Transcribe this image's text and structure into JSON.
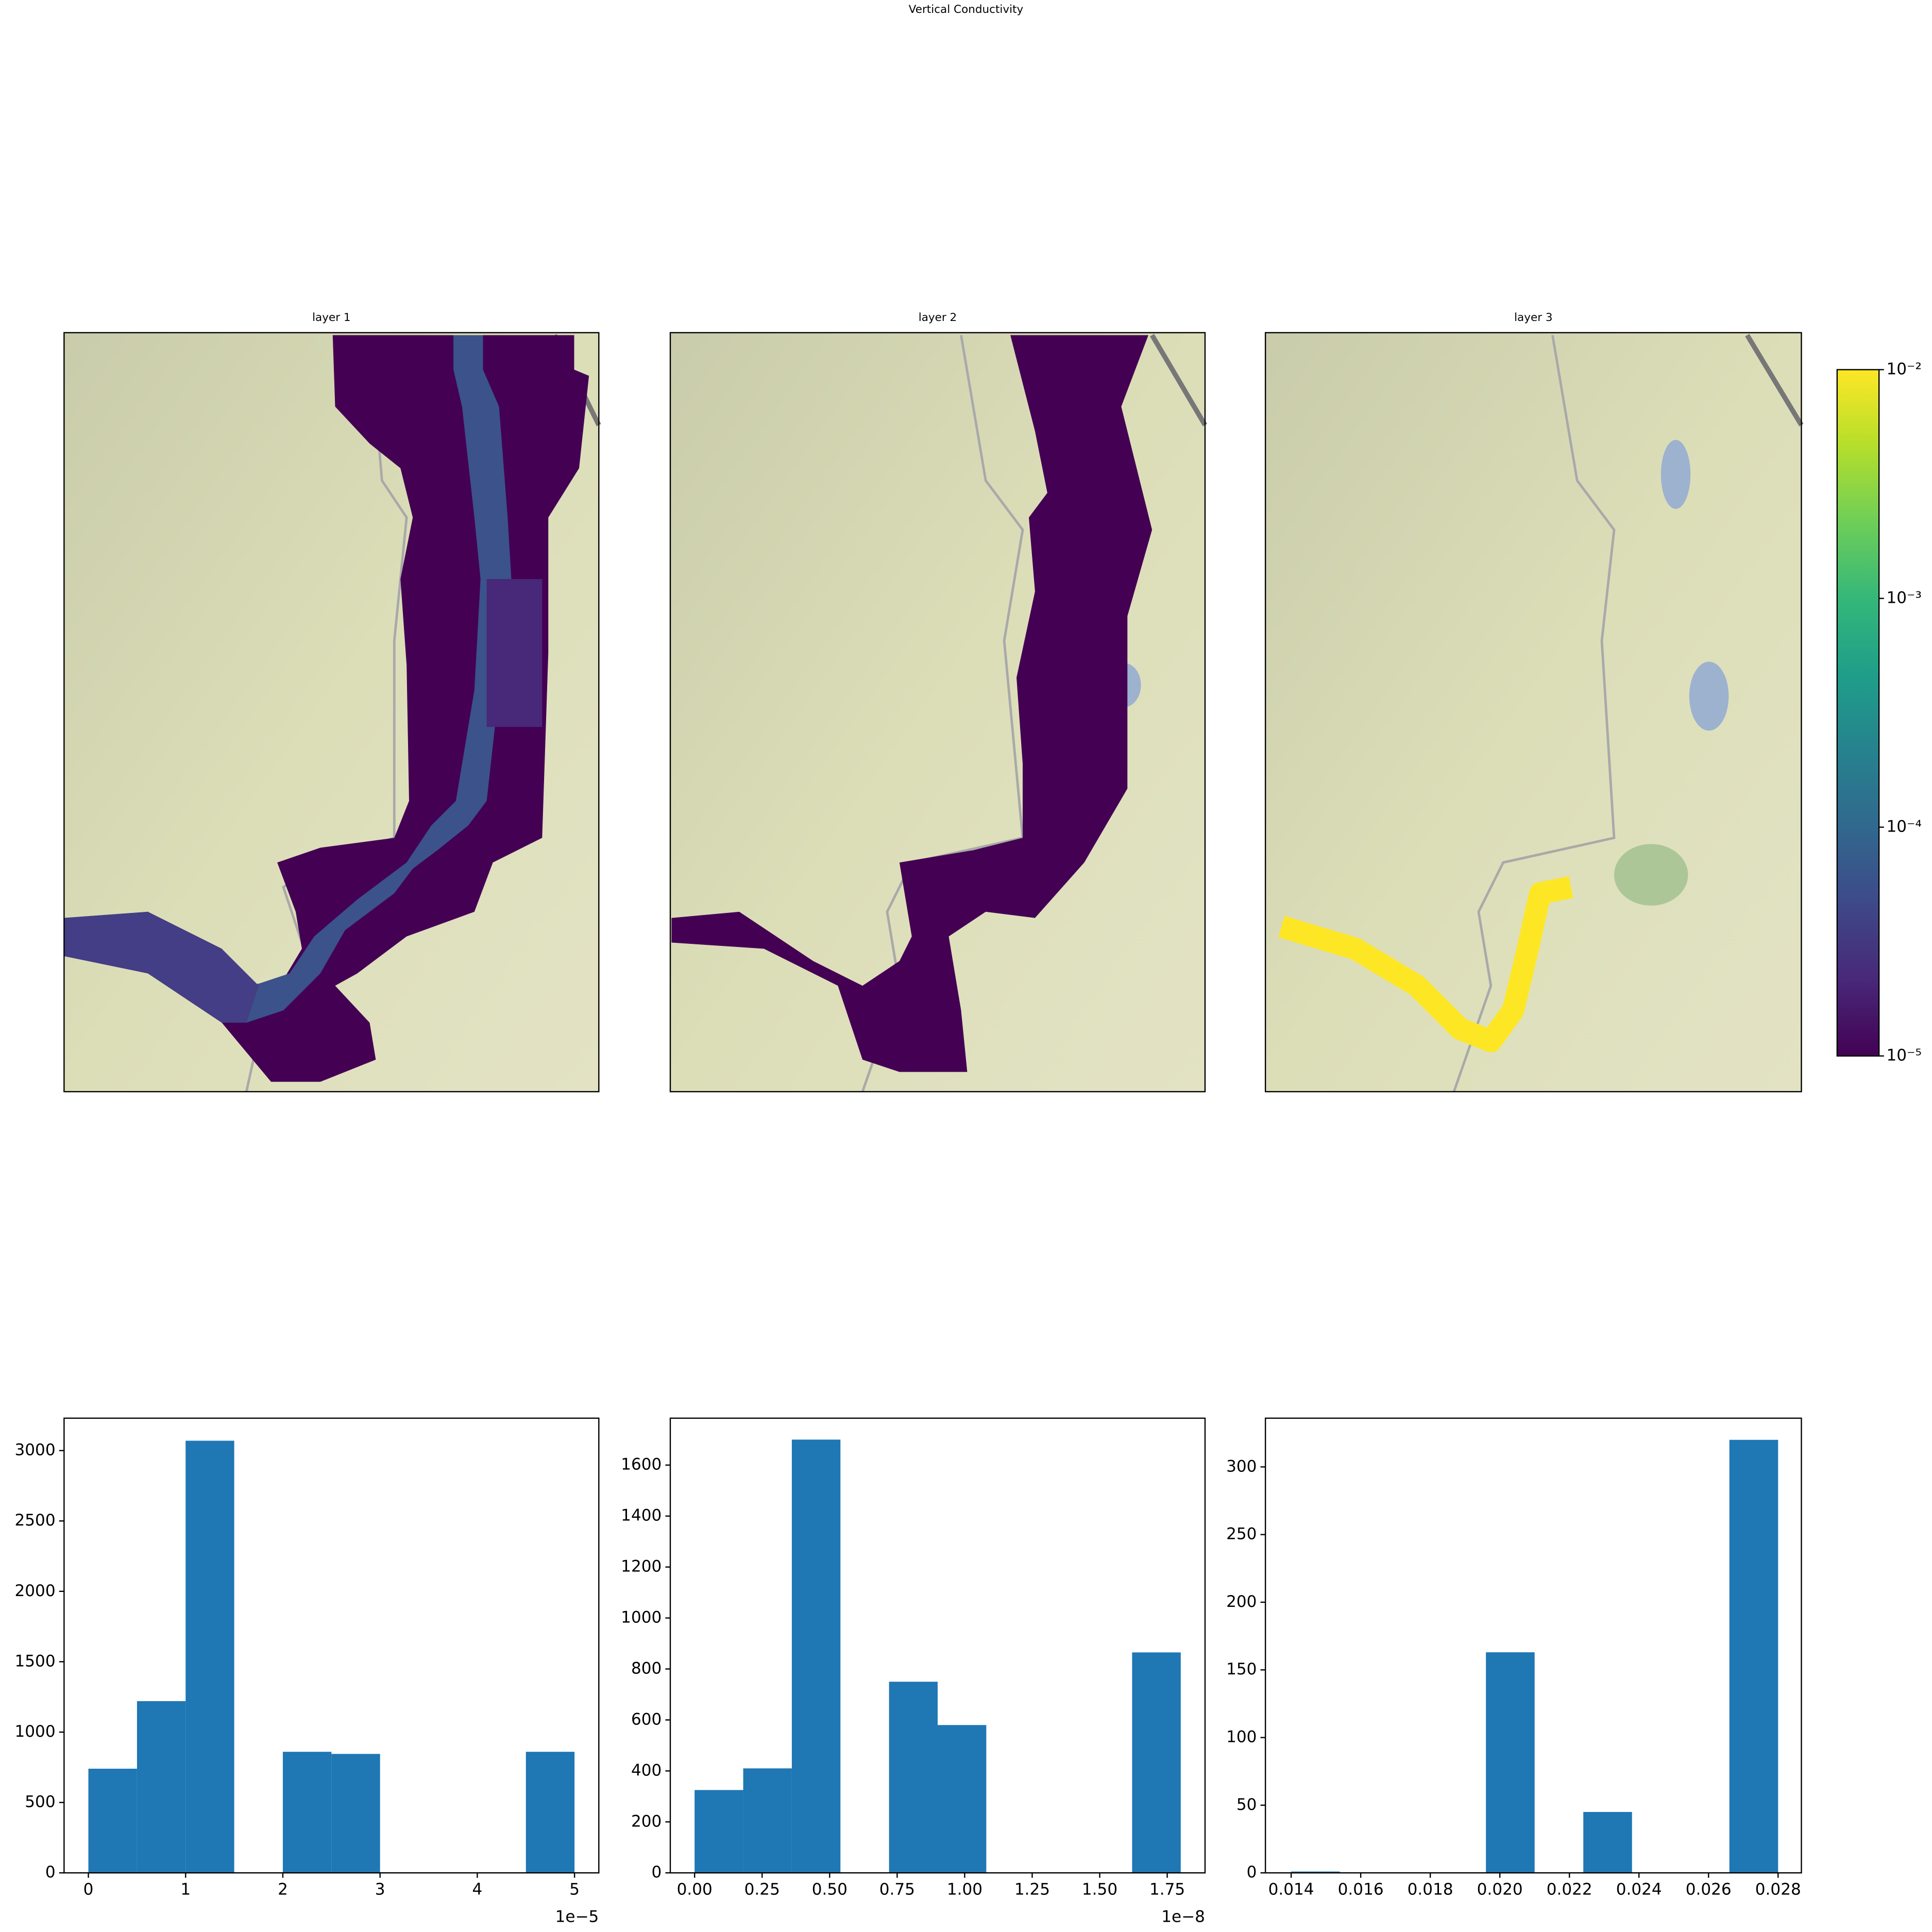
{
  "title": "Vertical Conductivity",
  "chart_data": [
    {
      "type": "map",
      "title": "layer 1"
    },
    {
      "type": "map",
      "title": "layer 2"
    },
    {
      "type": "map",
      "title": "layer 3"
    },
    {
      "type": "colorbar",
      "colormap": "viridis",
      "log_scale": true,
      "ylim": [
        1e-05,
        0.01
      ],
      "yticks": [
        {
          "value": 1e-05,
          "label": "10⁻⁵"
        },
        {
          "value": 0.0001,
          "label": "10⁻⁴"
        },
        {
          "value": 0.001,
          "label": "10⁻³"
        },
        {
          "value": 0.01,
          "label": "10⁻²"
        }
      ]
    },
    {
      "type": "histogram",
      "color": "#1f77b4",
      "bins": [
        0,
        5e-06,
        1e-05,
        1.5e-05,
        2e-05,
        2.5e-05,
        3e-05,
        3.5e-05,
        4e-05,
        4.5e-05,
        5e-05
      ],
      "values": [
        740,
        1220,
        3070,
        0,
        860,
        845,
        0,
        0,
        0,
        860
      ],
      "xlim": [
        -2.5e-06,
        5.25e-05
      ],
      "xticks": [
        {
          "value": 0,
          "label": "0"
        },
        {
          "value": 1e-05,
          "label": "1"
        },
        {
          "value": 2e-05,
          "label": "2"
        },
        {
          "value": 3e-05,
          "label": "3"
        },
        {
          "value": 4e-05,
          "label": "4"
        },
        {
          "value": 5e-05,
          "label": "5"
        }
      ],
      "x_offset_label": "1e−5",
      "ylim": [
        0,
        3230
      ],
      "yticks": [
        0,
        500,
        1000,
        1500,
        2000,
        2500,
        3000
      ]
    },
    {
      "type": "histogram",
      "color": "#1f77b4",
      "bins": [
        0,
        1.8e-09,
        3.6e-09,
        5.4e-09,
        7.2e-09,
        9e-09,
        1.08e-08,
        1.26e-08,
        1.44e-08,
        1.62e-08,
        1.8e-08
      ],
      "values": [
        325,
        410,
        1700,
        0,
        750,
        580,
        0,
        0,
        0,
        865
      ],
      "xlim": [
        -9e-10,
        1.89e-08
      ],
      "xticks": [
        {
          "value": 0,
          "label": "0.00"
        },
        {
          "value": 2.5e-09,
          "label": "0.25"
        },
        {
          "value": 5e-09,
          "label": "0.50"
        },
        {
          "value": 7.5e-09,
          "label": "0.75"
        },
        {
          "value": 1e-08,
          "label": "1.00"
        },
        {
          "value": 1.25e-08,
          "label": "1.25"
        },
        {
          "value": 1.5e-08,
          "label": "1.50"
        },
        {
          "value": 1.75e-08,
          "label": "1.75"
        }
      ],
      "x_offset_label": "1e−8",
      "ylim": [
        0,
        1784
      ],
      "yticks": [
        0,
        200,
        400,
        600,
        800,
        1000,
        1200,
        1400,
        1600
      ]
    },
    {
      "type": "histogram",
      "color": "#1f77b4",
      "bins": [
        0.014,
        0.0154,
        0.0168,
        0.0182,
        0.0196,
        0.021,
        0.0224,
        0.0238,
        0.0252,
        0.0266,
        0.028
      ],
      "values": [
        1,
        0,
        0,
        0,
        163,
        0,
        45,
        0,
        0,
        320
      ],
      "xlim": [
        0.01326,
        0.02867
      ],
      "xticks": [
        {
          "value": 0.014,
          "label": "0.014"
        },
        {
          "value": 0.016,
          "label": "0.016"
        },
        {
          "value": 0.018,
          "label": "0.018"
        },
        {
          "value": 0.02,
          "label": "0.020"
        },
        {
          "value": 0.022,
          "label": "0.022"
        },
        {
          "value": 0.024,
          "label": "0.024"
        },
        {
          "value": 0.026,
          "label": "0.026"
        },
        {
          "value": 0.028,
          "label": "0.028"
        }
      ],
      "ylim": [
        0,
        336
      ],
      "yticks": [
        0,
        50,
        100,
        150,
        200,
        250,
        300
      ]
    }
  ]
}
